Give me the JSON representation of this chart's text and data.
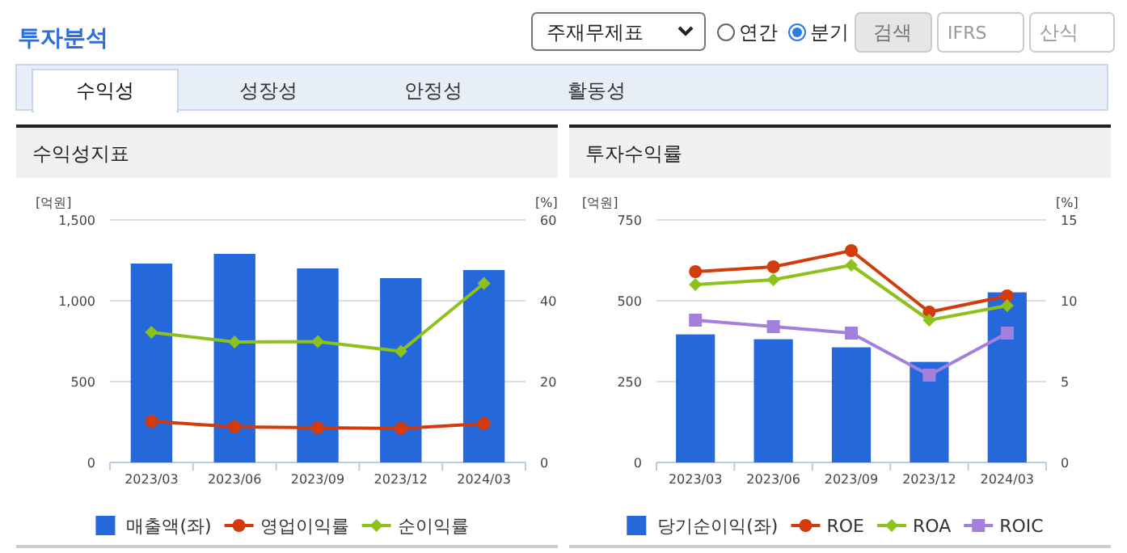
{
  "chart_data": [
    {
      "type": "bar",
      "title": "수익성지표",
      "ylabel": "[억원]",
      "y2label": "[%]",
      "annotations": [
        "투자분석",
        "주재무제표",
        "연간",
        "분기",
        "검색",
        "IFRS",
        "산식",
        "수익성",
        "성장성",
        "안정성",
        "활동성"
      ],
      "categories": [
        "2023/03",
        "2023/06",
        "2023/09",
        "2023/12",
        "2024/03"
      ],
      "ylim": [
        0,
        1500
      ],
      "yticks": [
        0,
        500,
        {
          "value": 1000,
          "label": "1,000"
        },
        {
          "value": 1500,
          "label": "1,500"
        }
      ],
      "y2lim": [
        0,
        60
      ],
      "y2ticks": [
        0,
        20,
        40,
        60
      ],
      "grid": "y",
      "legend": "bottom",
      "series": [
        {
          "name": "매출액(좌)",
          "color": "#2468dc",
          "values": [
            1230,
            1290,
            1200,
            1140,
            1190
          ]
        },
        {
          "name": "영업이익률",
          "type": "line",
          "axis": "y2",
          "marker": "circle",
          "color": "#d23c0c",
          "values": [
            10.2,
            8.8,
            8.6,
            8.4,
            9.6
          ]
        },
        {
          "name": "순이익률",
          "type": "line",
          "axis": "y2",
          "marker": "diamond",
          "color": "#8cc21b",
          "values": [
            32.2,
            29.8,
            29.9,
            27.5,
            44.3
          ]
        }
      ]
    },
    {
      "type": "bar",
      "title": "투자수익률",
      "ylabel": "[억원]",
      "y2label": "[%]",
      "categories": [
        "2023/03",
        "2023/06",
        "2023/09",
        "2023/12",
        "2024/03"
      ],
      "ylim": [
        0,
        750
      ],
      "yticks": [
        0,
        250,
        500,
        750
      ],
      "y2lim": [
        0,
        15
      ],
      "y2ticks": [
        0,
        5,
        10,
        15
      ],
      "grid": "y",
      "legend": "bottom",
      "series": [
        {
          "name": "당기순이익(좌)",
          "color": "#2468dc",
          "values": [
            396,
            381,
            356,
            311,
            526
          ]
        },
        {
          "name": "ROE",
          "type": "line",
          "axis": "y2",
          "marker": "circle",
          "color": "#d23c0c",
          "values": [
            11.8,
            12.1,
            13.1,
            9.3,
            10.3
          ]
        },
        {
          "name": "ROA",
          "type": "line",
          "axis": "y2",
          "marker": "diamond",
          "color": "#8cc21b",
          "values": [
            11.0,
            11.3,
            12.2,
            8.8,
            9.7
          ]
        },
        {
          "name": "ROIC",
          "type": "line",
          "axis": "y2",
          "marker": "square",
          "color": "#a57fdc",
          "values": [
            8.8,
            8.4,
            8.0,
            5.4,
            8.0
          ]
        }
      ]
    }
  ]
}
